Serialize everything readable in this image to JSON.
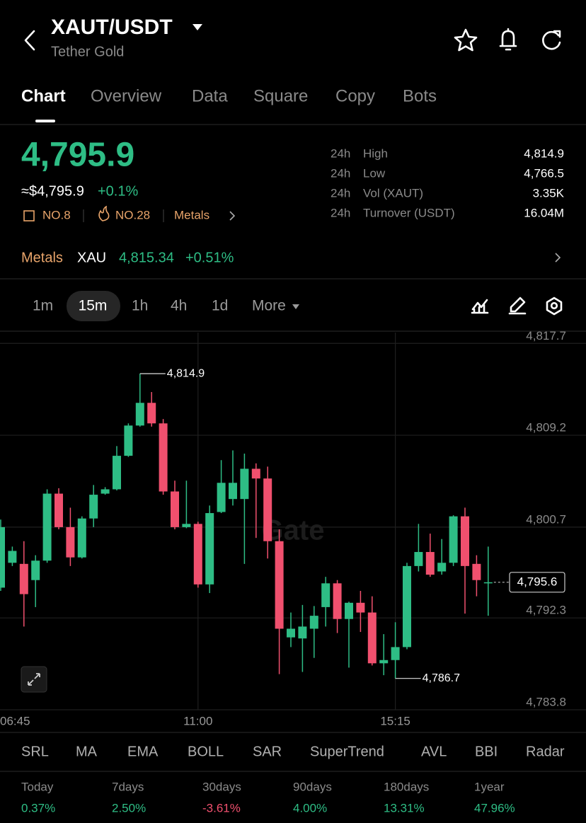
{
  "header": {
    "title": "XAUT/USDT",
    "subtitle": "Tether Gold"
  },
  "tabs": [
    "Chart",
    "Overview",
    "Data",
    "Square",
    "Copy",
    "Bots"
  ],
  "price": {
    "last": "4,795.9",
    "approx": "≈$4,795.9",
    "change": "+0.1%"
  },
  "badges": [
    "NO.8",
    "NO.28",
    "Metals"
  ],
  "stats": [
    [
      "24h",
      "High",
      "4,814.9"
    ],
    [
      "24h",
      "Low",
      "4,766.5"
    ],
    [
      "24h",
      "Vol (XAUT)",
      "3.35K"
    ],
    [
      "24h",
      "Turnover (USDT)",
      "16.04M"
    ]
  ],
  "metals_row": {
    "label": "Metals",
    "symbol": "XAU",
    "price": "4,815.34",
    "change": "+0.51%"
  },
  "intervals": [
    "1m",
    "15m",
    "1h",
    "4h",
    "1d",
    "More"
  ],
  "chart_data": {
    "type": "candlestick",
    "watermark": "Gate",
    "up_color": "#2ebd85",
    "down_color": "#f0506e",
    "categories": [
      "06:45",
      null,
      null,
      null,
      null,
      null,
      null,
      null,
      null,
      null,
      null,
      null,
      null,
      null,
      null,
      null,
      null,
      "11:00",
      null,
      null,
      null,
      null,
      null,
      null,
      null,
      null,
      null,
      null,
      null,
      null,
      null,
      null,
      null,
      null,
      "15:15",
      null,
      null,
      null,
      null,
      null,
      null,
      null,
      null
    ],
    "open": [
      4795.1,
      4797.4,
      4797.3,
      4795.8,
      4797.6,
      4803.8,
      4800.7,
      4797.9,
      4801.5,
      4803.8,
      4804.2,
      4807.3,
      4810.1,
      4812.2,
      4810.3,
      4804.0,
      4800.7,
      4801.0,
      4795.4,
      4802.1,
      4803.3,
      4803.3,
      4806.1,
      4805.2,
      4799.4,
      4790.5,
      4790.4,
      4791.3,
      4793.3,
      4795.5,
      4792.2,
      4793.7,
      4792.8,
      4788.1,
      4788.4,
      4789.6,
      4797.1,
      4798.4,
      4796.6,
      4797.4,
      4801.7,
      4797.3,
      4795.5
    ],
    "high": [
      4801.4,
      4798.9,
      4799.4,
      4798.1,
      4804.2,
      4804.3,
      4802.5,
      4801.7,
      4804.6,
      4804.4,
      4808.2,
      4810.3,
      4814.9,
      4813.2,
      4810.7,
      4805.0,
      4805.0,
      4801.2,
      4802.7,
      4806.9,
      4807.8,
      4807.5,
      4806.6,
      4806.3,
      4800.5,
      4792.8,
      4793.5,
      4793.4,
      4796.1,
      4795.8,
      4793.8,
      4794.8,
      4794.3,
      4790.8,
      4791.9,
      4797.4,
      4801.0,
      4800.1,
      4799.6,
      4801.8,
      4802.5,
      4798.1,
      4798.9
    ],
    "low": [
      4794.8,
      4797.1,
      4791.5,
      4793.3,
      4797.4,
      4800.5,
      4797.1,
      4797.8,
      4800.7,
      4803.7,
      4804.1,
      4807.2,
      4810.0,
      4810.0,
      4803.7,
      4800.5,
      4800.6,
      4795.1,
      4794.6,
      4802.0,
      4802.7,
      4797.3,
      4799.7,
      4797.8,
      4787.1,
      4789.6,
      4787.3,
      4788.6,
      4791.5,
      4790.9,
      4787.7,
      4791.0,
      4787.9,
      4787.0,
      4786.7,
      4789.4,
      4796.6,
      4796.1,
      4796.3,
      4797.1,
      4792.7,
      4794.3,
      4792.5
    ],
    "close": [
      4800.7,
      4798.5,
      4794.5,
      4797.6,
      4803.8,
      4800.7,
      4797.9,
      4801.5,
      4803.7,
      4804.2,
      4807.3,
      4810.1,
      4812.2,
      4810.3,
      4804.0,
      4800.7,
      4801.0,
      4795.4,
      4802.0,
      4804.8,
      4804.8,
      4806.1,
      4805.2,
      4799.4,
      4791.3,
      4791.3,
      4791.5,
      4792.5,
      4795.5,
      4792.2,
      4793.7,
      4792.8,
      4788.1,
      4788.4,
      4789.6,
      4797.1,
      4798.4,
      4796.3,
      4797.4,
      4801.7,
      4797.1,
      4795.8,
      4795.6
    ],
    "ylim": [
      4783.8,
      4818.7
    ],
    "yticks": [
      {
        "value": 4817.7,
        "label": "4,817.7"
      },
      {
        "value": 4809.2,
        "label": "4,809.2"
      },
      {
        "value": 4800.7,
        "label": "4,800.7"
      },
      {
        "value": 4792.3,
        "label": "4,792.3"
      },
      {
        "value": 4783.8,
        "label": "4,783.8"
      }
    ],
    "high_marker": {
      "value": 4814.9,
      "label": "4,814.9"
    },
    "low_marker": {
      "value": 4786.7,
      "label": "4,786.7"
    },
    "last_price": {
      "value": 4795.6,
      "label": "4,795.6"
    }
  },
  "indicators": [
    "SRL",
    "MA",
    "EMA",
    "BOLL",
    "SAR",
    "SuperTrend",
    "AVL",
    "BBI",
    "Radar"
  ],
  "performance": [
    {
      "period": "Today",
      "value": "0.37%"
    },
    {
      "period": "7days",
      "value": "2.50%"
    },
    {
      "period": "30days",
      "value": "-3.61%"
    },
    {
      "period": "90days",
      "value": "4.00%"
    },
    {
      "period": "180days",
      "value": "13.31%"
    },
    {
      "period": "1year",
      "value": "47.96%"
    }
  ]
}
